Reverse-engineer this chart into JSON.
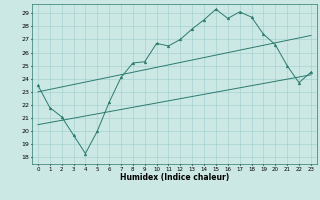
{
  "xlabel": "Humidex (Indice chaleur)",
  "xlim": [
    -0.5,
    23.5
  ],
  "ylim": [
    17.5,
    29.7
  ],
  "yticks": [
    18,
    19,
    20,
    21,
    22,
    23,
    24,
    25,
    26,
    27,
    28,
    29
  ],
  "xticks": [
    0,
    1,
    2,
    3,
    4,
    5,
    6,
    7,
    8,
    9,
    10,
    11,
    12,
    13,
    14,
    15,
    16,
    17,
    18,
    19,
    20,
    21,
    22,
    23
  ],
  "line_color": "#2a7a6e",
  "bg_color": "#cce8e4",
  "grid_color": "#9ecece",
  "jagged_x": [
    0,
    1,
    2,
    3,
    4,
    5,
    6,
    7,
    8,
    9,
    10,
    11,
    12,
    13,
    14,
    15,
    16,
    17,
    18,
    19,
    20,
    21,
    22,
    23
  ],
  "jagged_y": [
    23.5,
    21.8,
    21.1,
    19.7,
    18.3,
    20.0,
    22.2,
    24.1,
    25.2,
    25.3,
    26.7,
    26.5,
    27.0,
    27.8,
    28.5,
    29.3,
    28.6,
    29.1,
    28.7,
    27.4,
    26.6,
    25.0,
    23.7,
    24.5
  ],
  "upper_line_x": [
    0,
    23
  ],
  "upper_line_y": [
    23.0,
    27.3
  ],
  "lower_line_x": [
    0,
    23
  ],
  "lower_line_y": [
    20.5,
    24.3
  ]
}
